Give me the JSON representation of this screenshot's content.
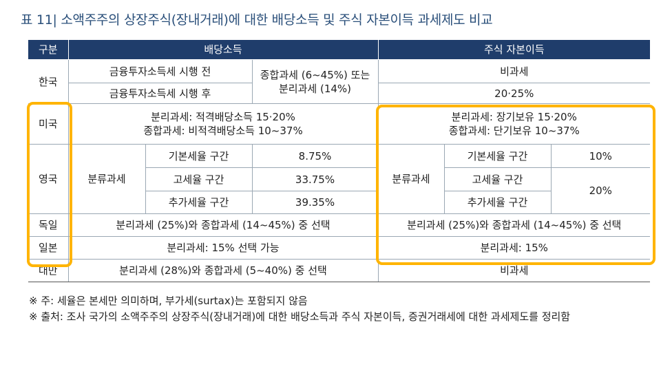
{
  "title": {
    "bar": "|",
    "text": "표 11| 소액주주의 상장주식(장내거래)에 대한 배당소득 및 주식 자본이득 과세제도 비교"
  },
  "table": {
    "headers": [
      "구분",
      "배당소득",
      "주식 자본이득"
    ],
    "korea": {
      "country": "한국",
      "before": "금융투자소득세 시행 전",
      "after": "금융투자소득세 시행 후",
      "dividend_rate_line1": "종합과세 (6~45%) 또는",
      "dividend_rate_line2": "분리과세 (14%)",
      "capital_before": "비과세",
      "capital_after": "20·25%"
    },
    "usa": {
      "country": "미국",
      "dividend_line1": "분리과세: 적격배당소득 15·20%",
      "dividend_line2": "종합과세: 비적격배당소득 10~37%",
      "capital_line1": "분리과세: 장기보유 15·20%",
      "capital_line2": "종합과세: 단기보유 10~37%"
    },
    "uk": {
      "country": "영국",
      "dividend_type": "분류과세",
      "dividend_bands": [
        {
          "band": "기본세율 구간",
          "rate": "8.75%"
        },
        {
          "band": "고세율 구간",
          "rate": "33.75%"
        },
        {
          "band": "추가세율 구간",
          "rate": "39.35%"
        }
      ],
      "capital_type": "분류과세",
      "capital_bands": [
        {
          "band": "기본세율 구간",
          "rate": "10%"
        },
        {
          "band": "고세율 구간",
          "rate": "20%"
        },
        {
          "band": "추가세율 구간",
          "rate": ""
        }
      ]
    },
    "germany": {
      "country": "독일",
      "dividend": "분리과세 (25%)와 종합과세 (14~45%) 중 선택",
      "capital": "분리과세 (25%)와 종합과세 (14~45%) 중 선택"
    },
    "japan": {
      "country": "일본",
      "dividend": "분리과세: 15% 선택 가능",
      "capital": "분리과세: 15%"
    },
    "taiwan": {
      "country": "대만",
      "dividend": "분리과세 (28%)와 종합과세 (5~40%) 중 선택",
      "capital": "비과세"
    }
  },
  "notes": {
    "note1_mark": "※ 주: ",
    "note1_text": "세율은 본세만 의미하며, 부가세(surtax)는 포함되지 않음",
    "note2_mark": "※ 출처: ",
    "note2_text": "조사 국가의 소액주주의 상장주식(장내거래)에 대한 배당소득과 주식 자본이득, 증권거래세에 대한 과세제도를 정리함"
  },
  "colors": {
    "header_bg": "#1f3d6b",
    "title": "#2a4f7a",
    "highlight": "#ffb400"
  }
}
